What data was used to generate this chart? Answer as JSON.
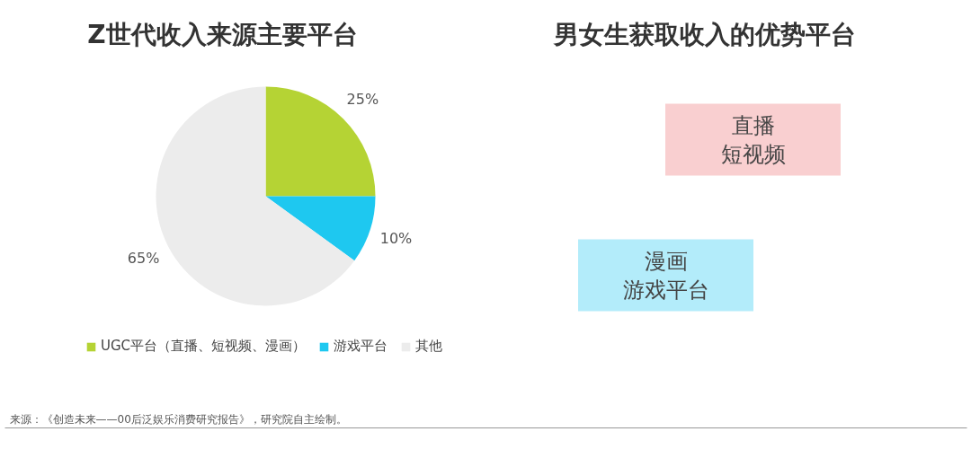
{
  "chart_data": [
    {
      "type": "pie",
      "title": "Z世代收入来源主要平台",
      "categories": [
        "UGC平台（直播、短视频、漫画）",
        "游戏平台",
        "其他"
      ],
      "values": [
        25,
        10,
        65
      ],
      "colors": [
        "#b5d334",
        "#1ec8f0",
        "#ececec"
      ],
      "value_labels": [
        "25%",
        "10%",
        "65%"
      ],
      "legend": "bottom",
      "annotations": [
        "来源：《创造未来——00后泛娱乐消费研究报告》，研究院自主绘制。"
      ]
    },
    {
      "type": "other",
      "title": "男女生获取收入的优势平台",
      "annotations": [
        "直播",
        "短视频",
        "漫画",
        "游戏平台"
      ],
      "colors": [
        "#f9cfd0",
        "#b3ecfa"
      ]
    }
  ]
}
